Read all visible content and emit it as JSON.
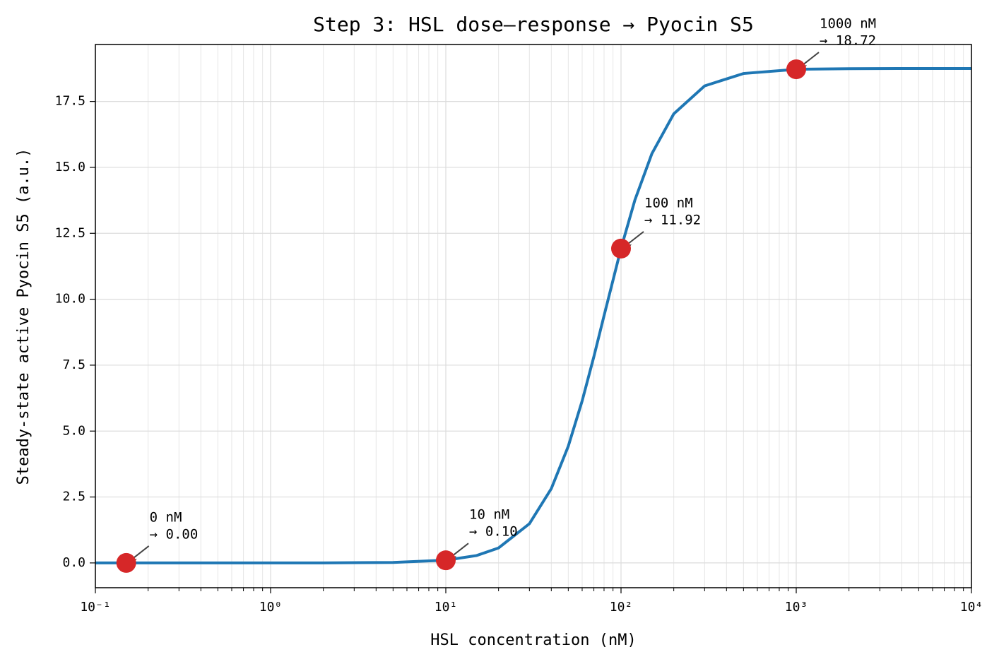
{
  "chart_data": {
    "type": "line",
    "title": "Step 3: HSL dose–response → Pyocin S5",
    "x_label": "HSL concentration (nM)",
    "y_label": "Steady-state active Pyocin S5 (a.u.)",
    "x_scale": "log",
    "grid": true,
    "xlim": [
      0.1,
      10000
    ],
    "ylim": [
      -0.94,
      19.66
    ],
    "xticks": [
      {
        "value": 0.1,
        "label": "10⁻¹"
      },
      {
        "value": 1,
        "label": "10⁰"
      },
      {
        "value": 10,
        "label": "10¹"
      },
      {
        "value": 100,
        "label": "10²"
      },
      {
        "value": 1000,
        "label": "10³"
      },
      {
        "value": 10000,
        "label": "10⁴"
      }
    ],
    "xminorticks": [
      0.2,
      0.3,
      0.4,
      0.5,
      0.6,
      0.7,
      0.8,
      0.9,
      2,
      3,
      4,
      5,
      6,
      7,
      8,
      9,
      20,
      30,
      40,
      50,
      60,
      70,
      80,
      90,
      200,
      300,
      400,
      500,
      600,
      700,
      800,
      900,
      2000,
      3000,
      4000,
      5000,
      6000,
      7000,
      8000,
      9000
    ],
    "yticks": [
      {
        "value": 0,
        "label": "0.0"
      },
      2.5,
      {
        "value": 5,
        "label": "5.0"
      },
      7.5,
      {
        "value": 10,
        "label": "10.0"
      },
      12.5,
      {
        "value": 15,
        "label": "15.0"
      },
      17.5
    ],
    "line": {
      "color": "#1f77b4",
      "x": [
        0.1,
        0.2,
        0.5,
        1,
        2,
        5,
        10,
        15,
        20,
        30,
        40,
        50,
        60,
        70,
        80,
        100,
        120,
        150,
        200,
        300,
        500,
        1000,
        2000,
        5000,
        10000
      ],
      "y": [
        0,
        0,
        0.0001,
        0.0003,
        0.0019,
        0.018,
        0.103,
        0.281,
        0.568,
        1.487,
        2.817,
        4.424,
        6.142,
        7.824,
        9.375,
        11.925,
        13.76,
        15.52,
        17.03,
        18.09,
        18.56,
        18.72,
        18.744,
        18.75,
        18.75
      ]
    },
    "points": {
      "color": "#d62728",
      "x": [
        0.15,
        10,
        100,
        1000
      ],
      "y": [
        0,
        0.1,
        11.92,
        18.72
      ]
    },
    "annotations": [
      {
        "lines": [
          "0 nM",
          "→ 0.00"
        ]
      },
      {
        "lines": [
          "10 nM",
          "→ 0.10"
        ]
      },
      {
        "lines": [
          "100 nM",
          "→ 11.92"
        ]
      },
      {
        "lines": [
          "1000 nM",
          "→ 18.72"
        ]
      }
    ]
  }
}
